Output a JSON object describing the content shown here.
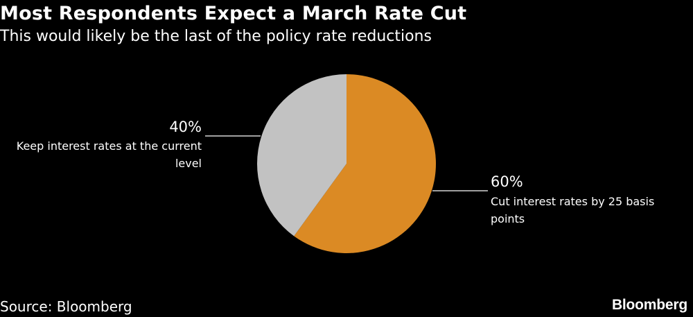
{
  "title": "Most Respondents Expect a March Rate Cut",
  "subtitle": "This would likely be the last of the policy rate reductions",
  "chart_data": {
    "type": "pie",
    "slices": [
      {
        "label_lines": [
          "Cut interest rates by 25 basis",
          "points"
        ],
        "value": 60,
        "value_label": "60%",
        "color": "#db8a24"
      },
      {
        "label_lines": [
          "Keep interest rates at the current",
          "level"
        ],
        "value": 40,
        "value_label": "40%",
        "color": "#c2c2c2"
      }
    ]
  },
  "source": "Source: Bloomberg",
  "brand": "Bloomberg"
}
